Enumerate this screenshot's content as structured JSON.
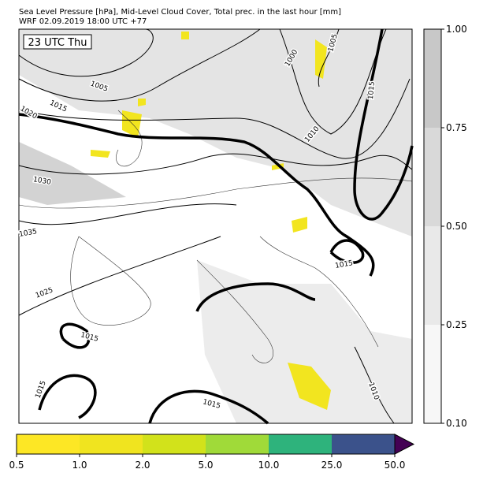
{
  "header": {
    "line1": "Sea Level Pressure [hPa], Mid-Level Cloud Cover, Total prec. in the last hour [mm]",
    "line2": "WRF 02.09.2019 18:00 UTC +77"
  },
  "map": {
    "time_label": "23 UTC Thu",
    "contour_labels": [
      "1005",
      "1000",
      "1005",
      "1015",
      "1020",
      "1015",
      "1010",
      "1030",
      "1035",
      "1025",
      "1015",
      "1015",
      "1015",
      "1015",
      "1010"
    ]
  },
  "cloud_colorbar": {
    "ticks": [
      {
        "value": 0.1,
        "label": "0.10"
      },
      {
        "value": 0.25,
        "label": "0.25"
      },
      {
        "value": 0.5,
        "label": "0.50"
      },
      {
        "value": 0.75,
        "label": "0.75"
      },
      {
        "value": 1,
        "label": "1.00"
      }
    ],
    "colors": [
      "#f7f7f7",
      "#e9e9e9",
      "#d9d9d9",
      "#c8c8c8"
    ]
  },
  "precip_colorbar": {
    "ticks": [
      0.5,
      {
        "value": 1,
        "label": "1.0"
      },
      {
        "value": 2,
        "label": "2.0"
      },
      {
        "value": 5,
        "label": "5.0"
      },
      {
        "value": 10,
        "label": "10.0"
      },
      {
        "value": 25,
        "label": "25.0"
      },
      {
        "value": 50,
        "label": "50.0"
      }
    ],
    "colors": [
      "#fde725",
      "#f0e41f",
      "#d2e21b",
      "#a0da39",
      "#2eb37c",
      "#3b528b"
    ],
    "extend_color": "#440154"
  }
}
